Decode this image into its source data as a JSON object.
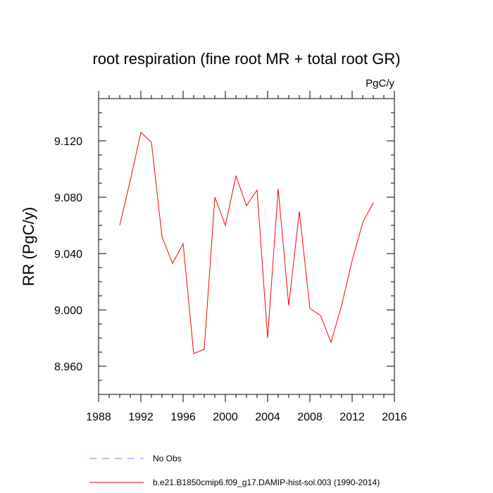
{
  "chart_data": {
    "type": "line",
    "title": "root respiration (fine root MR + total root GR)",
    "units": "PgC/y",
    "ylabel": "RR  (PgC/y)",
    "xlabel": "",
    "xlim": [
      1988,
      2016
    ],
    "ylim": [
      8.94,
      9.15
    ],
    "x_ticks": [
      1988,
      1992,
      1996,
      2000,
      2004,
      2008,
      2012,
      2016
    ],
    "x_tick_labels": [
      "1988",
      "1992",
      "1996",
      "2000",
      "2004",
      "2008",
      "2012",
      "2016"
    ],
    "y_ticks": [
      8.96,
      9.0,
      9.04,
      9.08,
      9.12
    ],
    "y_tick_labels": [
      "8.960",
      "9.000",
      "9.040",
      "9.080",
      "9.120"
    ],
    "grid": false,
    "legend_placement": "bottom",
    "series": [
      {
        "name": "b.e21.B1850cmip6.f09_g17.DAMIP-hist-sol.003 (1990-2014)",
        "color": "#ff0000",
        "style": "solid",
        "x": [
          1990,
          1991,
          1992,
          1993,
          1994,
          1995,
          1996,
          1997,
          1998,
          1999,
          2000,
          2001,
          2002,
          2003,
          2004,
          2005,
          2006,
          2007,
          2008,
          2009,
          2010,
          2011,
          2012,
          2013,
          2014
        ],
        "y": [
          9.06,
          9.092,
          9.126,
          9.119,
          9.052,
          9.033,
          9.047,
          8.969,
          8.972,
          9.08,
          9.06,
          9.095,
          9.074,
          9.085,
          8.98,
          9.086,
          9.003,
          9.07,
          9.001,
          8.996,
          8.977,
          9.003,
          9.035,
          9.062,
          9.076
        ]
      },
      {
        "name": "No Obs",
        "color": "#8080ff",
        "style": "dashed",
        "x": [],
        "y": []
      }
    ]
  }
}
